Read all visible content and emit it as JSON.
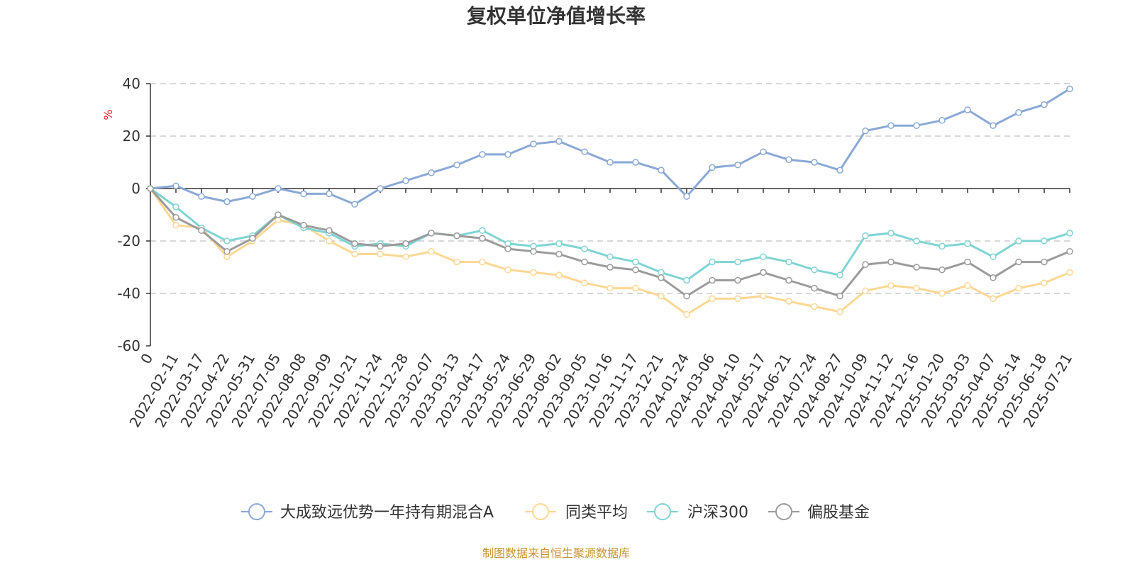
{
  "chart_data": {
    "type": "line",
    "title": "复权单位净值增长率",
    "ylabel": "%",
    "ylim": [
      -60,
      40
    ],
    "yticks": [
      40,
      20,
      0,
      -20,
      -40,
      -60
    ],
    "x_labels": [
      "0",
      "2022-02-11",
      "2022-03-17",
      "2022-04-22",
      "2022-05-31",
      "2022-07-05",
      "2022-08-08",
      "2022-09-09",
      "2022-10-21",
      "2022-11-24",
      "2022-12-28",
      "2023-02-07",
      "2023-03-13",
      "2023-04-17",
      "2023-05-24",
      "2023-06-29",
      "2023-08-02",
      "2023-09-05",
      "2023-10-16",
      "2023-11-17",
      "2023-12-21",
      "2024-01-24",
      "2024-03-06",
      "2024-04-10",
      "2024-05-17",
      "2024-06-21",
      "2024-07-24",
      "2024-08-27",
      "2024-10-09",
      "2024-11-12",
      "2024-12-16",
      "2025-01-20",
      "2025-03-03",
      "2025-04-07",
      "2025-05-14",
      "2025-06-18",
      "2025-07-21"
    ],
    "grid": true,
    "legend_position": "bottom",
    "series": [
      {
        "name": "大成致远优势一年持有期混合A",
        "color": "#8aa8d6",
        "values": [
          0,
          1,
          -3,
          -5,
          -3,
          0,
          -2,
          -2,
          -6,
          0,
          3,
          6,
          9,
          13,
          13,
          17,
          18,
          14,
          10,
          10,
          7,
          -3,
          8,
          9,
          14,
          11,
          10,
          7,
          22,
          24,
          24,
          26,
          30,
          24,
          29,
          32,
          38
        ]
      },
      {
        "name": "同类平均",
        "color": "#fdd792",
        "values": [
          0,
          -14,
          -15,
          -26,
          -20,
          -12,
          -14,
          -20,
          -25,
          -25,
          -26,
          -24,
          -28,
          -28,
          -31,
          -32,
          -33,
          -36,
          -38,
          -38,
          -41,
          -48,
          -42,
          -42,
          -41,
          -43,
          -45,
          -47,
          -39,
          -37,
          -38,
          -40,
          -37,
          -42,
          -38,
          -36,
          -32
        ]
      },
      {
        "name": "沪深300",
        "color": "#7fd4d4",
        "values": [
          0,
          -7,
          -15,
          -20,
          -18,
          -10,
          -15,
          -17,
          -22,
          -21,
          -22,
          -17,
          -18,
          -16,
          -21,
          -22,
          -21,
          -23,
          -26,
          -28,
          -32,
          -35,
          -28,
          -28,
          -26,
          -28,
          -31,
          -33,
          -18,
          -17,
          -20,
          -22,
          -21,
          -26,
          -20,
          -20,
          -17
        ]
      },
      {
        "name": "偏股基金",
        "color": "#9b9b9b",
        "values": [
          0,
          -11,
          -16,
          -24,
          -19,
          -10,
          -14,
          -16,
          -21,
          -22,
          -21,
          -17,
          -18,
          -19,
          -23,
          -24,
          -25,
          -28,
          -30,
          -31,
          -34,
          -41,
          -35,
          -35,
          -32,
          -35,
          -38,
          -41,
          -29,
          -28,
          -30,
          -31,
          -28,
          -34,
          -28,
          -28,
          -24
        ]
      }
    ],
    "source_note": "制图数据来自恒生聚源数据库"
  }
}
